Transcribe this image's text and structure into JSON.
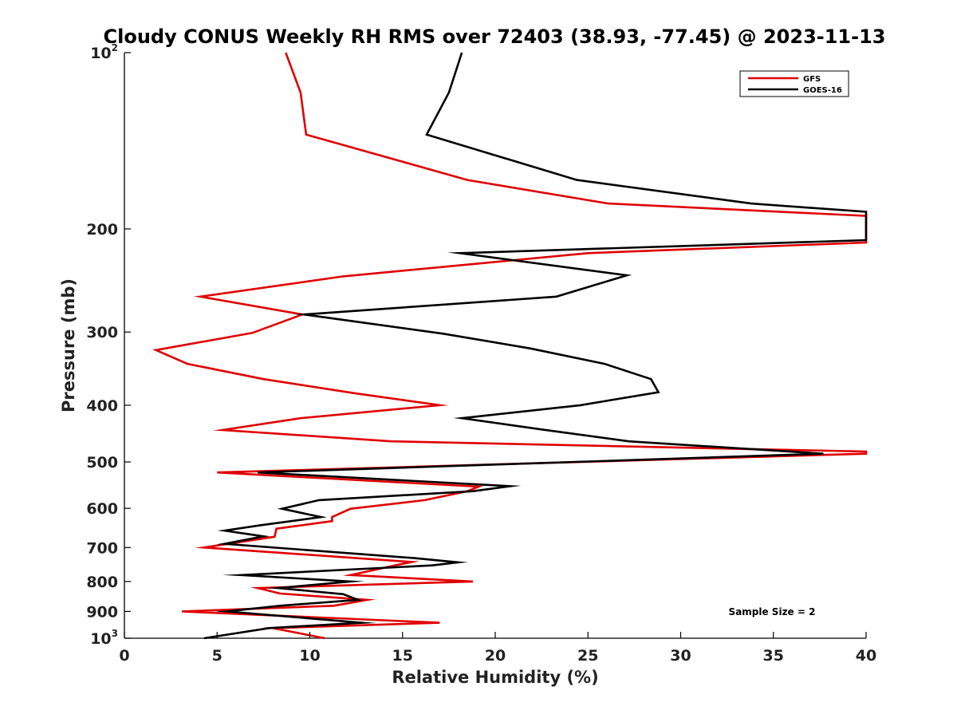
{
  "chart_data": {
    "type": "line",
    "title": "Cloudy CONUS Weekly RH RMS over 72403 (38.93, -77.45) @ 2023-11-13",
    "xlabel": "Relative Humidity (%)",
    "ylabel": "Pressure (mb)",
    "xlim": [
      0,
      40
    ],
    "ylim": [
      100,
      1000
    ],
    "y_scale": "log",
    "y_reversed": true,
    "grid": false,
    "legend_position": "top-right",
    "x_ticks": [
      "0",
      "5",
      "10",
      "15",
      "20",
      "25",
      "30",
      "35",
      "40"
    ],
    "y_ticks": [
      {
        "value": 100,
        "base": "10",
        "exp": "2"
      },
      {
        "value": 200,
        "label": "200"
      },
      {
        "value": 300,
        "label": "300"
      },
      {
        "value": 400,
        "label": "400"
      },
      {
        "value": 500,
        "label": "500"
      },
      {
        "value": 600,
        "label": "600"
      },
      {
        "value": 700,
        "label": "700"
      },
      {
        "value": 800,
        "label": "800"
      },
      {
        "value": 900,
        "label": "900"
      },
      {
        "value": 1000,
        "base": "10",
        "exp": "3"
      }
    ],
    "annotation": "Sample Size = 2",
    "series": [
      {
        "name": "GFS",
        "color": "#e00000",
        "points": [
          [
            8.7,
            100
          ],
          [
            9.5,
            117
          ],
          [
            9.8,
            138
          ],
          [
            18.5,
            165
          ],
          [
            26.1,
            181
          ],
          [
            40.0,
            190
          ],
          [
            40.0,
            211
          ],
          [
            25.0,
            220
          ],
          [
            11.8,
            241
          ],
          [
            4.1,
            261
          ],
          [
            9.6,
            280
          ],
          [
            6.9,
            301
          ],
          [
            1.7,
            322
          ],
          [
            3.4,
            340
          ],
          [
            7.5,
            361
          ],
          [
            12.5,
            382
          ],
          [
            17.0,
            400
          ],
          [
            9.5,
            421
          ],
          [
            5.3,
            441
          ],
          [
            14.4,
            461
          ],
          [
            40.0,
            480
          ],
          [
            40.0,
            484
          ],
          [
            5.0,
            521
          ],
          [
            19.1,
            551
          ],
          [
            18.5,
            561
          ],
          [
            16.2,
            581
          ],
          [
            12.2,
            601
          ],
          [
            11.2,
            621
          ],
          [
            11.2,
            631
          ],
          [
            8.2,
            650
          ],
          [
            8.1,
            671
          ],
          [
            4.3,
            700
          ],
          [
            15.5,
            741
          ],
          [
            14.6,
            751
          ],
          [
            12.2,
            780
          ],
          [
            18.8,
            800
          ],
          [
            7.2,
            821
          ],
          [
            8.4,
            839
          ],
          [
            13.1,
            860
          ],
          [
            11.3,
            880
          ],
          [
            3.1,
            900
          ],
          [
            17.0,
            941
          ],
          [
            8.0,
            961
          ],
          [
            10.8,
            1000
          ]
        ]
      },
      {
        "name": "GOES-16",
        "color": "#000000",
        "points": [
          [
            18.2,
            100
          ],
          [
            17.5,
            117
          ],
          [
            16.3,
            138
          ],
          [
            24.4,
            165
          ],
          [
            33.8,
            181
          ],
          [
            40.0,
            187
          ],
          [
            40.0,
            209
          ],
          [
            18.1,
            220
          ],
          [
            27.1,
            240
          ],
          [
            23.3,
            261
          ],
          [
            9.7,
            280
          ],
          [
            17.2,
            302
          ],
          [
            21.9,
            320
          ],
          [
            25.9,
            340
          ],
          [
            28.4,
            361
          ],
          [
            28.8,
            380
          ],
          [
            24.6,
            400
          ],
          [
            18.2,
            421
          ],
          [
            22.5,
            440
          ],
          [
            27.2,
            461
          ],
          [
            37.7,
            484
          ],
          [
            7.2,
            521
          ],
          [
            20.8,
            550
          ],
          [
            18.8,
            561
          ],
          [
            10.5,
            581
          ],
          [
            8.5,
            601
          ],
          [
            10.6,
            621
          ],
          [
            7.4,
            641
          ],
          [
            5.4,
            655
          ],
          [
            7.5,
            670
          ],
          [
            5.4,
            690
          ],
          [
            15.7,
            730
          ],
          [
            18.0,
            742
          ],
          [
            16.6,
            751
          ],
          [
            6.3,
            780
          ],
          [
            12.2,
            800
          ],
          [
            8.3,
            821
          ],
          [
            11.8,
            841
          ],
          [
            12.6,
            860
          ],
          [
            8.4,
            880
          ],
          [
            5.5,
            900
          ],
          [
            12.8,
            941
          ],
          [
            7.8,
            961
          ],
          [
            4.3,
            1000
          ]
        ]
      }
    ]
  }
}
